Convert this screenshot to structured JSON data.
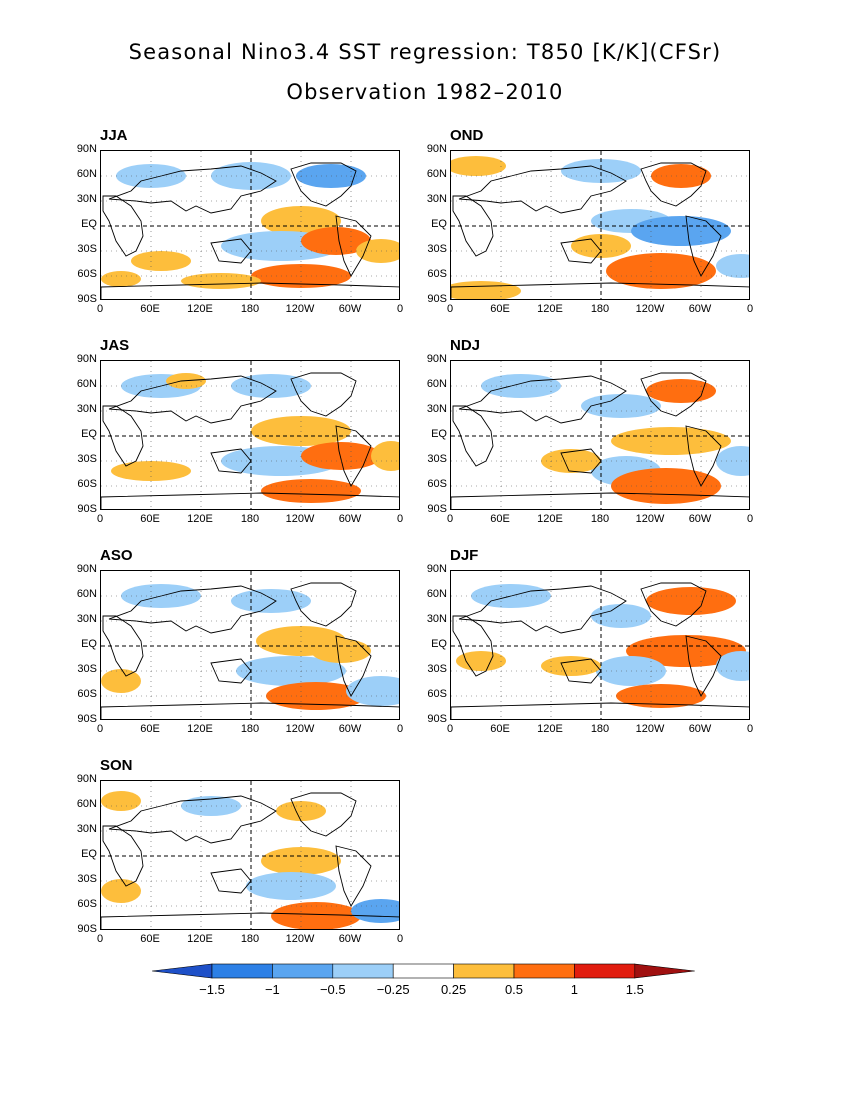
{
  "title": "Seasonal Nino3.4 SST regression: T850 [K/K](CFSr)",
  "subtitle": "Observation 1982–2010",
  "lat_ticks": [
    "90N",
    "60N",
    "30N",
    "EQ",
    "30S",
    "60S",
    "90S"
  ],
  "lon_ticks": [
    "0",
    "60E",
    "120E",
    "180",
    "120W",
    "60W",
    "0"
  ],
  "panels": [
    {
      "label": "JJA"
    },
    {
      "label": "OND"
    },
    {
      "label": "JAS"
    },
    {
      "label": "NDJ"
    },
    {
      "label": "ASO"
    },
    {
      "label": "DJF"
    },
    {
      "label": "SON"
    }
  ],
  "colorbar": {
    "levels": [
      "−1.5",
      "−1",
      "−0.5",
      "−0.25",
      "0.25",
      "0.5",
      "1",
      "1.5"
    ],
    "colors": [
      "#1e50c8",
      "#2d80e6",
      "#5aa5f0",
      "#9ccff8",
      "#ffffff",
      "#fdbe3c",
      "#ff6e10",
      "#e11d0f",
      "#a01010"
    ]
  },
  "colors": {
    "land_outline": "#000000",
    "light_warm": "#fdbe3c",
    "medium_warm": "#ff6e10",
    "light_cool": "#9ccff8",
    "medium_cool": "#5aa5f0",
    "strong_cool": "#2d80e6"
  }
}
